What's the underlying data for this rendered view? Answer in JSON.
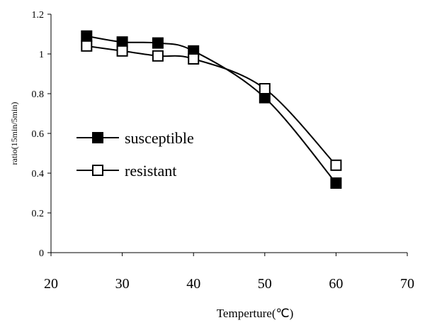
{
  "chart_data": {
    "type": "line",
    "title": "",
    "xlabel": "Temperture(℃)",
    "ylabel": "ratio(15min/5min)",
    "xlim": [
      20,
      70
    ],
    "ylim": [
      0,
      1.2
    ],
    "xticks": [
      20,
      30,
      40,
      50,
      60,
      70
    ],
    "yticks": [
      0,
      0.2,
      0.4,
      0.6,
      0.8,
      1,
      1.2
    ],
    "grid": false,
    "legend_position": "left-middle",
    "series": [
      {
        "name": "susceptible",
        "marker": "filled-square",
        "color": "#000000",
        "x": [
          25,
          30,
          35,
          40,
          50,
          60
        ],
        "y": [
          1.09,
          1.06,
          1.055,
          1.015,
          0.78,
          0.35
        ]
      },
      {
        "name": "resistant",
        "marker": "open-square",
        "color": "#000000",
        "x": [
          25,
          30,
          35,
          40,
          50,
          60
        ],
        "y": [
          1.04,
          1.015,
          0.99,
          0.975,
          0.825,
          0.44
        ]
      }
    ]
  }
}
